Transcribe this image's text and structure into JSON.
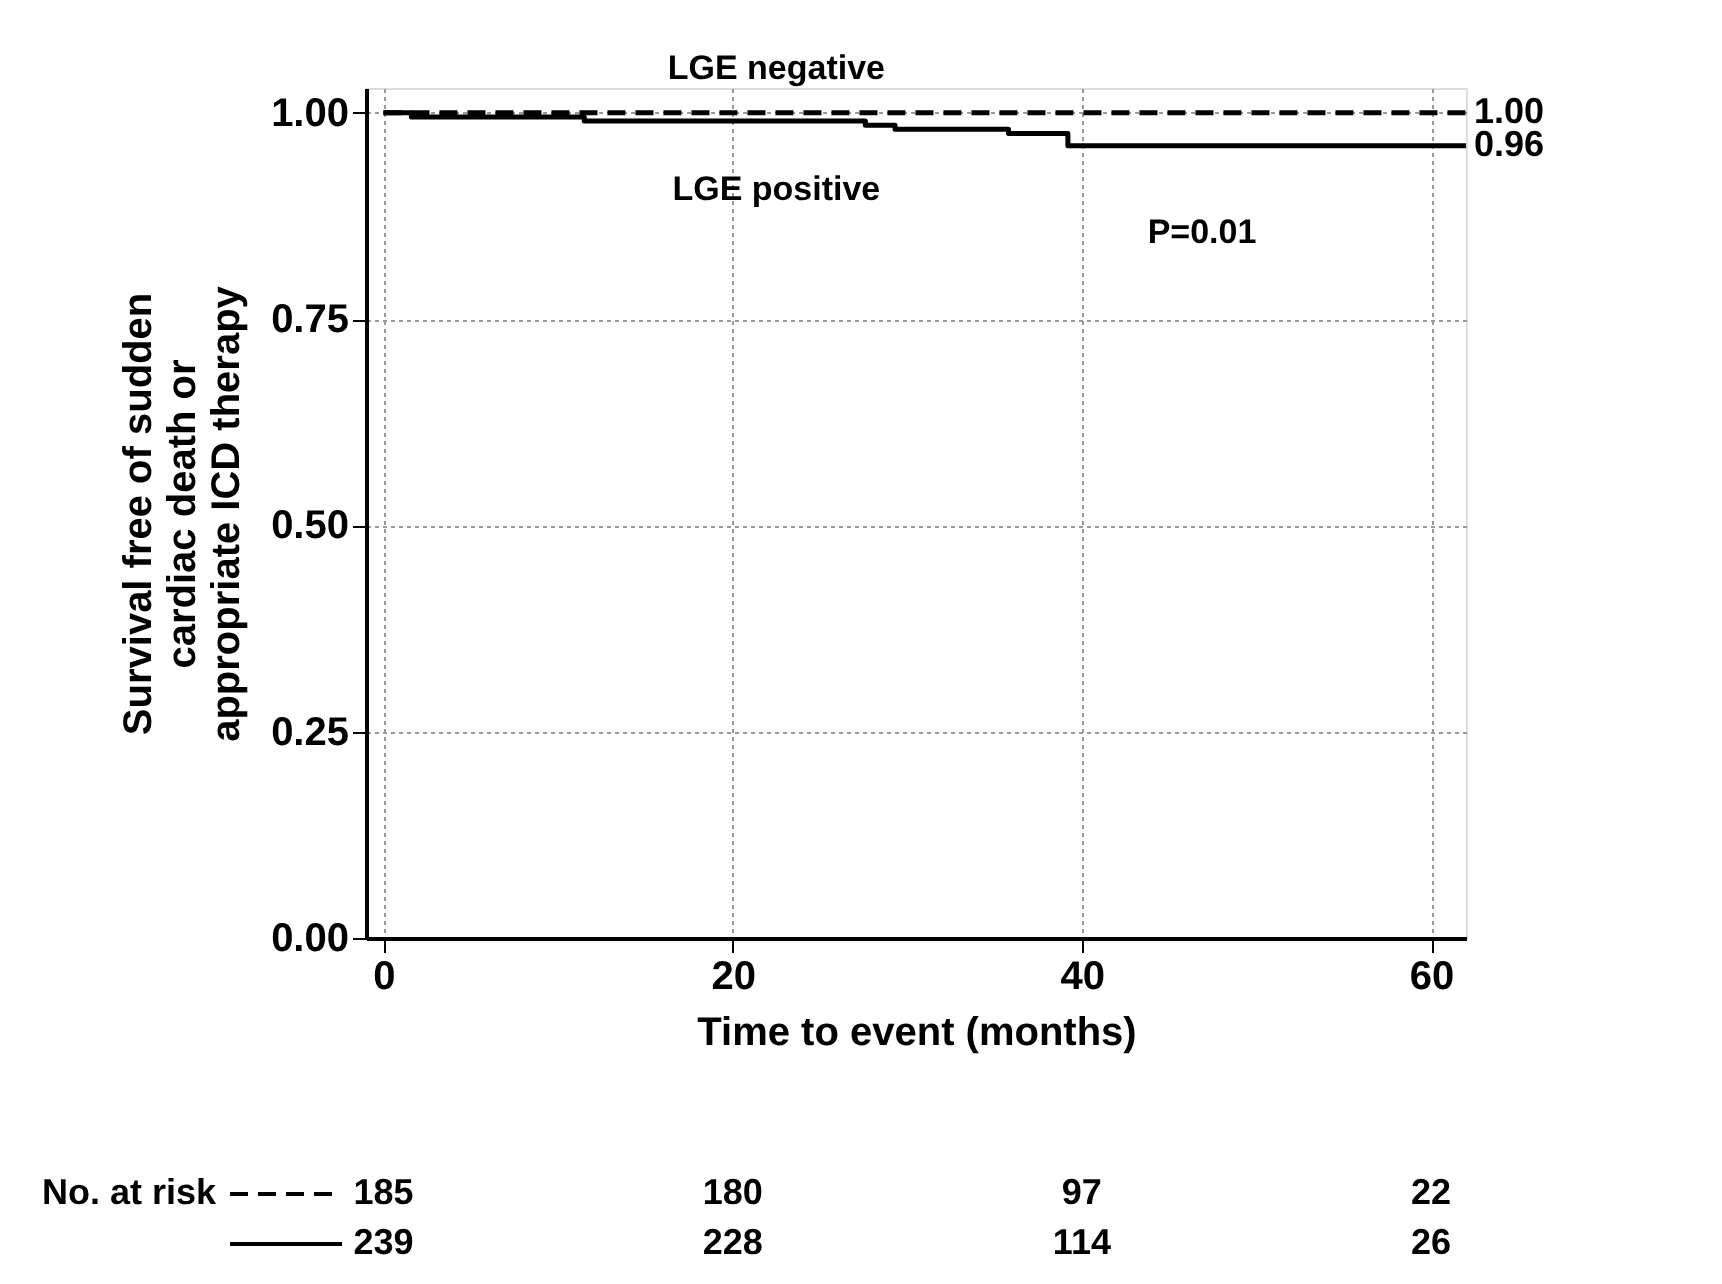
{
  "chart_data": {
    "type": "step",
    "xlabel": "Time to event (months)",
    "ylabel": "Survival free of sudden cardiac death or appropriate ICD therapy",
    "xlim": [
      -1,
      62
    ],
    "xticks": [
      0,
      20,
      40,
      60
    ],
    "ylim": [
      0,
      1.03
    ],
    "yticks": [
      {
        "value": 0,
        "label": "0.00"
      },
      {
        "value": 0.25,
        "label": "0.25"
      },
      {
        "value": 0.5,
        "label": "0.50"
      },
      {
        "value": 0.75,
        "label": "0.75"
      },
      {
        "value": 1,
        "label": "1.00"
      }
    ],
    "grid": true,
    "series": [
      {
        "name": "LGE negative",
        "color": "#000000",
        "line_style": "dashed",
        "x": [
          0,
          62
        ],
        "values": [
          1.0,
          1.0
        ],
        "value_labels": [
          null,
          "1.00"
        ]
      },
      {
        "name": "LGE positive",
        "color": "#000000",
        "line_style": "solid",
        "x": [
          0,
          1.6,
          11.5,
          27.6,
          29.3,
          35.8,
          39.2,
          62
        ],
        "values": [
          1.0,
          0.995,
          0.99,
          0.985,
          0.98,
          0.975,
          0.96,
          0.96
        ],
        "value_labels": [
          null,
          null,
          null,
          null,
          null,
          null,
          null,
          "0.96"
        ]
      }
    ],
    "annotations": [
      "P=0.01",
      "No. at risk",
      "185",
      "180",
      "97",
      "22",
      "239",
      "228",
      "114",
      "26"
    ]
  }
}
